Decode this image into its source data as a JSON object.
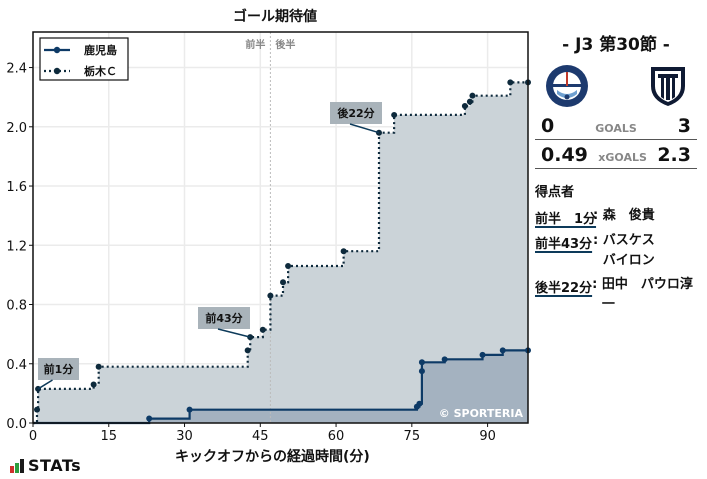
{
  "chart_data": {
    "type": "line",
    "title": "ゴール期待値",
    "xlabel": "キックオフからの経過時間(分)",
    "ylabel": "",
    "xlim": [
      0,
      98
    ],
    "ylim": [
      0,
      2.64
    ],
    "x_ticks": [
      0,
      15,
      30,
      45,
      60,
      75,
      90
    ],
    "y_ticks": [
      0.0,
      0.4,
      0.8,
      1.2,
      1.6,
      2.0,
      2.4
    ],
    "y_tick_labels": [
      "0.0",
      "0.4",
      "0.8",
      "1.2",
      "1.6",
      "2.0",
      "2.4"
    ],
    "grid": true,
    "legend_position": "upper left",
    "halftime_marker": {
      "x": 47,
      "left_label": "前半",
      "right_label": "後半"
    },
    "watermark": "© SPORTERIA",
    "series": [
      {
        "name": "鹿児島",
        "style": "solid",
        "color": "#0d3a66",
        "fill": "#a4b2c0",
        "step_points": [
          [
            0,
            0
          ],
          [
            23,
            0.03
          ],
          [
            31,
            0.09
          ],
          [
            76,
            0.11
          ],
          [
            76.5,
            0.13
          ],
          [
            77,
            0.35
          ],
          [
            77,
            0.41
          ],
          [
            81.5,
            0.43
          ],
          [
            89,
            0.46
          ],
          [
            93,
            0.49
          ],
          [
            98,
            0.49
          ]
        ]
      },
      {
        "name": "栃木Ｃ",
        "style": "dotted",
        "color": "#0e2a3c",
        "fill": "#cbd3d8",
        "step_points": [
          [
            0,
            0
          ],
          [
            0.8,
            0.09
          ],
          [
            1,
            0.23
          ],
          [
            12,
            0.26
          ],
          [
            13,
            0.38
          ],
          [
            42.5,
            0.49
          ],
          [
            43,
            0.58
          ],
          [
            45.5,
            0.63
          ],
          [
            47,
            0.86
          ],
          [
            49.5,
            0.95
          ],
          [
            50.5,
            1.06
          ],
          [
            61.5,
            1.16
          ],
          [
            68.5,
            1.96
          ],
          [
            71.5,
            2.08
          ],
          [
            85.5,
            2.14
          ],
          [
            86.5,
            2.17
          ],
          [
            87,
            2.21
          ],
          [
            94.5,
            2.3
          ],
          [
            98,
            2.3
          ]
        ]
      }
    ],
    "annotations": [
      {
        "text": "前1分",
        "x": 1,
        "y": 0.23
      },
      {
        "text": "前43分",
        "x": 43,
        "y": 0.58
      },
      {
        "text": "後22分",
        "x": 68.5,
        "y": 1.96
      }
    ]
  },
  "header": {
    "title": "ゴール期待値"
  },
  "axis": {
    "xlabel": "キックオフからの経過時間(分)"
  },
  "brand": {
    "name": "STATs",
    "bar_colors": [
      "#d0312d",
      "#2e9e3f",
      "#1a1a1a"
    ]
  },
  "match": {
    "matchday": "- J3 第30節 -",
    "home": {
      "name": "鹿児島",
      "logo": "kagoshima-united-crest"
    },
    "away": {
      "name": "栃木Ｃ",
      "logo": "tochigi-city-crest"
    },
    "goals": {
      "home": "0",
      "label": "GOALS",
      "away": "3"
    },
    "xgoals": {
      "home": "0.49",
      "label": "xGOALS",
      "away": "2.3"
    }
  },
  "scorers": {
    "header": "得点者",
    "items": [
      {
        "time": "前半　1分",
        "name": "森　俊貴"
      },
      {
        "time": "前半43分",
        "name": "バスケス\nバイロン"
      },
      {
        "time": "後半22分",
        "name": "田中　パウロ淳一"
      }
    ]
  }
}
